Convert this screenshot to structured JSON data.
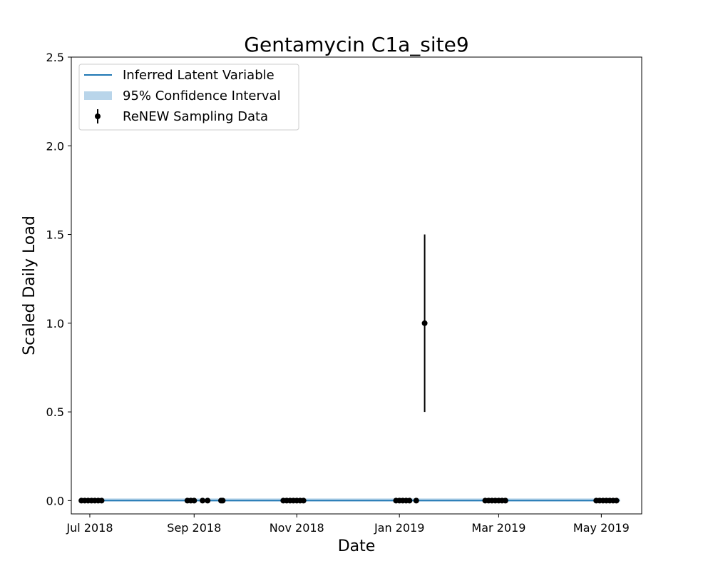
{
  "chart_data": {
    "type": "line",
    "title": "Gentamycin C1a_site9",
    "xlabel": "Date",
    "ylabel": "Scaled Daily Load",
    "xlim": [
      "2018-06-20",
      "2019-05-25"
    ],
    "ylim": [
      -0.075,
      2.5
    ],
    "y_ticks": [
      0.0,
      0.5,
      1.0,
      1.5,
      2.0,
      2.5
    ],
    "y_tick_labels": [
      "0.0",
      "0.5",
      "1.0",
      "1.5",
      "2.0",
      "2.5"
    ],
    "x_ticks": [
      "2018-07-01",
      "2018-09-01",
      "2018-11-01",
      "2019-01-01",
      "2019-03-01",
      "2019-05-01"
    ],
    "x_tick_labels": [
      "Jul 2018",
      "Sep 2018",
      "Nov 2018",
      "Jan 2019",
      "Mar 2019",
      "May 2019"
    ],
    "grid": false,
    "legend_position": "top-left",
    "series": [
      {
        "name": "Inferred Latent Variable",
        "kind": "line",
        "color": "#1f77b4",
        "x": [
          "2018-06-26",
          "2019-05-12"
        ],
        "y": [
          0.0,
          0.0
        ]
      },
      {
        "name": "95% Confidence Interval",
        "kind": "band",
        "color": "#b9d5ea",
        "x": [
          "2018-06-26",
          "2019-05-12"
        ],
        "lower": [
          0.0,
          0.0
        ],
        "upper": [
          0.012,
          0.012
        ]
      },
      {
        "name": "ReNEW Sampling Data",
        "kind": "errorbar",
        "color": "#000000",
        "points": [
          {
            "x": "2018-06-26",
            "y": 0.0
          },
          {
            "x": "2018-06-28",
            "y": 0.0
          },
          {
            "x": "2018-06-30",
            "y": 0.0
          },
          {
            "x": "2018-07-02",
            "y": 0.0
          },
          {
            "x": "2018-07-04",
            "y": 0.0
          },
          {
            "x": "2018-07-06",
            "y": 0.0
          },
          {
            "x": "2018-07-08",
            "y": 0.0
          },
          {
            "x": "2018-08-28",
            "y": 0.0
          },
          {
            "x": "2018-08-30",
            "y": 0.0
          },
          {
            "x": "2018-09-01",
            "y": 0.0
          },
          {
            "x": "2018-09-06",
            "y": 0.0
          },
          {
            "x": "2018-09-09",
            "y": 0.0
          },
          {
            "x": "2018-09-17",
            "y": 0.0
          },
          {
            "x": "2018-09-18",
            "y": 0.0
          },
          {
            "x": "2018-10-24",
            "y": 0.0
          },
          {
            "x": "2018-10-26",
            "y": 0.0
          },
          {
            "x": "2018-10-28",
            "y": 0.0
          },
          {
            "x": "2018-10-30",
            "y": 0.0
          },
          {
            "x": "2018-11-01",
            "y": 0.0
          },
          {
            "x": "2018-11-03",
            "y": 0.0
          },
          {
            "x": "2018-11-05",
            "y": 0.0
          },
          {
            "x": "2018-12-30",
            "y": 0.0
          },
          {
            "x": "2019-01-01",
            "y": 0.0
          },
          {
            "x": "2019-01-03",
            "y": 0.0
          },
          {
            "x": "2019-01-05",
            "y": 0.0
          },
          {
            "x": "2019-01-07",
            "y": 0.0
          },
          {
            "x": "2019-01-11",
            "y": 0.0
          },
          {
            "x": "2019-01-16",
            "y": 1.0,
            "err_low": 0.5,
            "err_high": 1.5
          },
          {
            "x": "2019-02-21",
            "y": 0.0
          },
          {
            "x": "2019-02-23",
            "y": 0.0
          },
          {
            "x": "2019-02-25",
            "y": 0.0
          },
          {
            "x": "2019-02-27",
            "y": 0.0
          },
          {
            "x": "2019-03-01",
            "y": 0.0
          },
          {
            "x": "2019-03-03",
            "y": 0.0
          },
          {
            "x": "2019-03-05",
            "y": 0.0
          },
          {
            "x": "2019-04-28",
            "y": 0.0
          },
          {
            "x": "2019-04-30",
            "y": 0.0
          },
          {
            "x": "2019-05-02",
            "y": 0.0
          },
          {
            "x": "2019-05-04",
            "y": 0.0
          },
          {
            "x": "2019-05-06",
            "y": 0.0
          },
          {
            "x": "2019-05-08",
            "y": 0.0
          },
          {
            "x": "2019-05-10",
            "y": 0.0
          }
        ]
      }
    ]
  }
}
